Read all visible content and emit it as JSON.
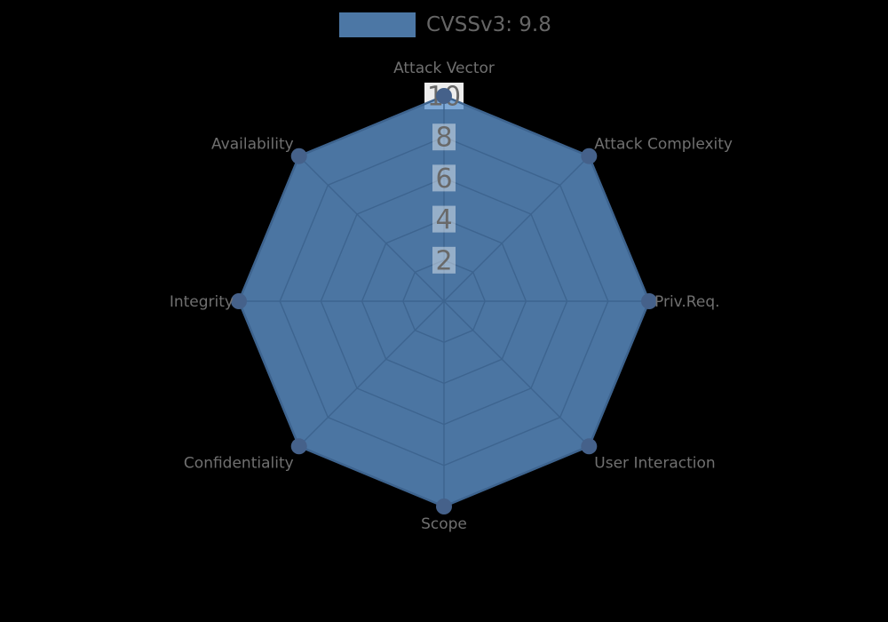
{
  "legend": {
    "label": "CVSSv3: 9.8",
    "swatch_color": "#4c77a5"
  },
  "chart_data": {
    "type": "radar",
    "title": "CVSSv3: 9.8",
    "axes": [
      "Attack Vector",
      "Attack Complexity",
      "Priv.Req.",
      "User Interaction",
      "Scope",
      "Confidentiality",
      "Integrity",
      "Availability"
    ],
    "series": [
      {
        "name": "CVSSv3: 9.8",
        "values": [
          10,
          10,
          10,
          10,
          10,
          10,
          10,
          10
        ]
      }
    ],
    "ticks": [
      2,
      4,
      6,
      8,
      10
    ],
    "rmax": 10,
    "legend_position": "top",
    "grid": "on",
    "colors": {
      "fill": "rgba(96,150,208,0.78)",
      "border": "#3f638e",
      "marker": "#45618a",
      "grid_line": "#3d648f",
      "tick_backdrop": "rgba(255,255,255,0.42)",
      "tick_backdrop_max": "#ededed",
      "tick_text": "#696969",
      "axis_label": "#707070",
      "legend_text": "#666666",
      "background": "#000000"
    }
  }
}
